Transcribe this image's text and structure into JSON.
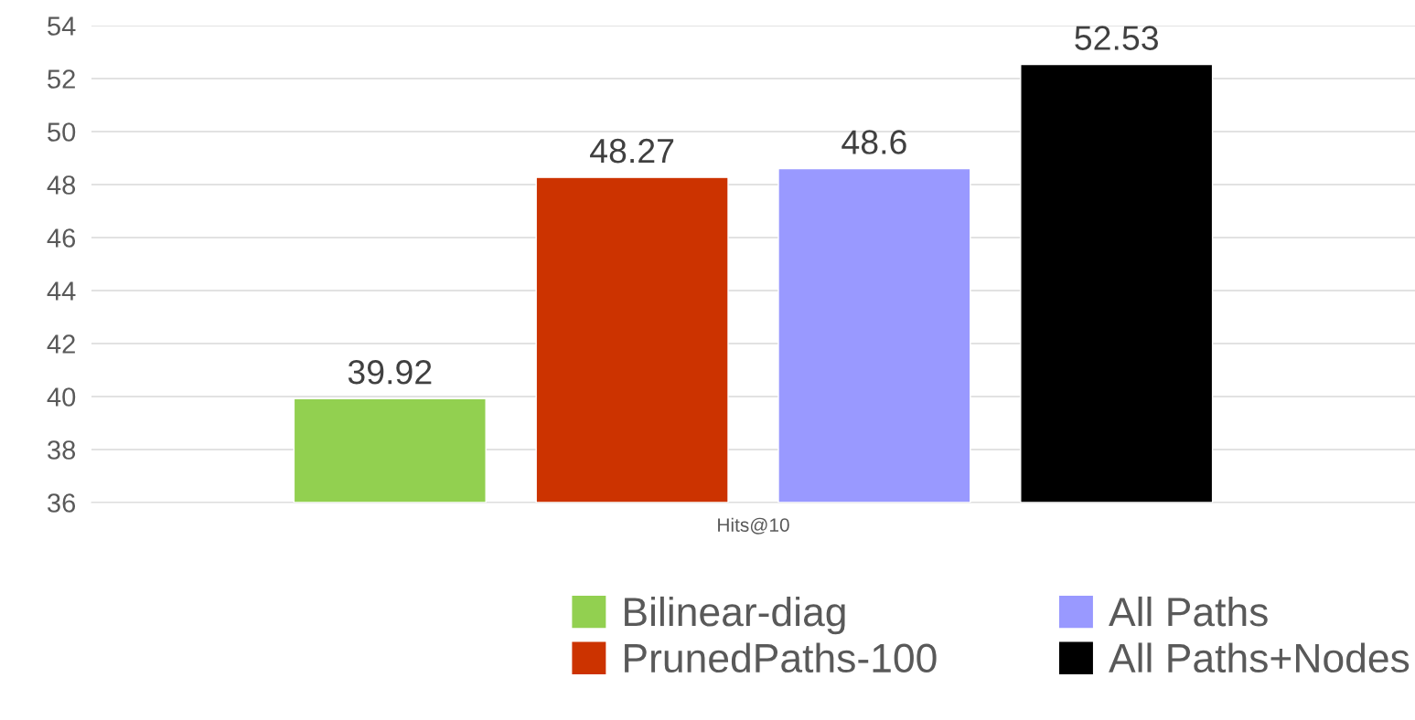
{
  "chart_data": {
    "type": "bar",
    "categories": [
      "Hits@10"
    ],
    "series": [
      {
        "name": "Bilinear-diag",
        "color": "#92d050",
        "values": [
          39.92
        ]
      },
      {
        "name": "PrunedPaths-100",
        "color": "#cc3300",
        "values": [
          48.27
        ]
      },
      {
        "name": "All Paths",
        "color": "#9999ff",
        "values": [
          48.6
        ]
      },
      {
        "name": "All Paths+Nodes",
        "color": "#000000",
        "values": [
          52.53
        ]
      }
    ],
    "ylim": [
      36,
      54
    ],
    "yticks": [
      36,
      38,
      40,
      42,
      44,
      46,
      48,
      50,
      52,
      54
    ],
    "grid": "y",
    "legend": "bottom",
    "data_labels": true
  }
}
